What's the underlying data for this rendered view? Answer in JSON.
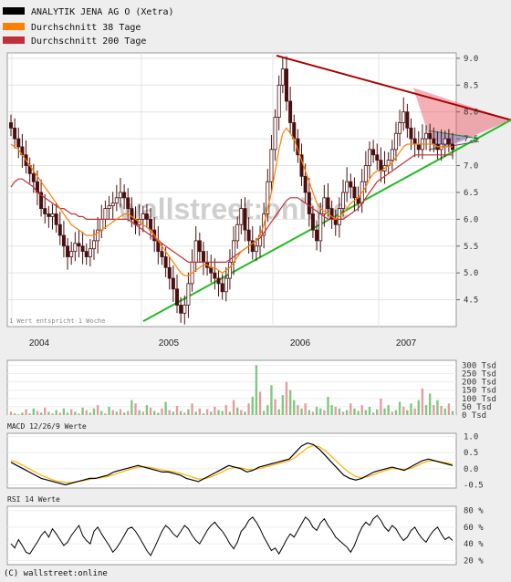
{
  "legend": [
    {
      "label": "ANALYTIK JENA AG O (Xetra)",
      "color": "#000000"
    },
    {
      "label": "Durchschnitt 38 Tage",
      "color": "#ff7f00"
    },
    {
      "label": "Durchschnitt 200 Tage",
      "color": "#c0303a"
    }
  ],
  "note": "1 Wert entspricht 1 Woche",
  "watermark": "wallstreet:online",
  "footer": "(C) wallstreet:online",
  "colors": {
    "candle": "#4a1010",
    "ma38": "#ff7f00",
    "ma200": "#c0303a",
    "support": "#22bb22",
    "resistance": "#aa0000",
    "vol_up": "#7fc97f",
    "vol_down": "#e89aa0",
    "macd": "#000000",
    "signal": "#ffb000",
    "rsi": "#000000"
  },
  "chart_data": [
    {
      "type": "line",
      "name": "price",
      "x_categories": [
        "2004",
        "2005",
        "2006",
        "2007"
      ],
      "y_ticks": [
        "9.0",
        "8.5",
        "8.0",
        "7.5",
        "7.0",
        "6.5",
        "6.0",
        "5.5",
        "5.0",
        "4.5"
      ],
      "ylim": [
        4.0,
        9.1
      ],
      "weekly_close": [
        7.7,
        7.5,
        7.35,
        7.2,
        7.0,
        6.85,
        6.7,
        6.5,
        6.2,
        6.1,
        6.05,
        6.1,
        5.9,
        5.7,
        5.5,
        5.3,
        5.4,
        5.55,
        5.5,
        5.4,
        5.3,
        5.45,
        5.6,
        5.8,
        6.0,
        6.2,
        6.25,
        6.3,
        6.4,
        6.5,
        6.4,
        6.2,
        6.0,
        5.9,
        6.0,
        6.1,
        6.0,
        5.8,
        5.6,
        5.4,
        5.3,
        5.1,
        4.9,
        4.7,
        4.4,
        4.25,
        4.4,
        4.8,
        5.2,
        5.6,
        5.4,
        5.2,
        5.1,
        5.0,
        4.9,
        4.8,
        4.65,
        4.9,
        5.2,
        5.6,
        5.9,
        6.2,
        5.8,
        5.6,
        5.4,
        5.5,
        5.7,
        6.1,
        6.7,
        7.3,
        7.9,
        8.5,
        8.8,
        8.2,
        7.8,
        7.5,
        7.2,
        6.8,
        6.5,
        6.1,
        5.8,
        5.6,
        6.1,
        6.4,
        6.2,
        6.0,
        5.9,
        6.2,
        6.5,
        6.7,
        6.6,
        6.4,
        6.3,
        6.7,
        7.0,
        7.3,
        7.2,
        7.1,
        6.9,
        7.0,
        7.1,
        7.3,
        7.6,
        7.8,
        8.0,
        7.7,
        7.5,
        7.4,
        7.3,
        7.5,
        7.6,
        7.5,
        7.4,
        7.3,
        7.4,
        7.5,
        7.4,
        7.3
      ],
      "ma38": [
        7.4,
        7.35,
        7.3,
        7.2,
        7.1,
        7.0,
        6.9,
        6.8,
        6.7,
        6.6,
        6.5,
        6.4,
        6.3,
        6.2,
        6.1,
        6.0,
        5.9,
        5.85,
        5.8,
        5.75,
        5.7,
        5.7,
        5.7,
        5.75,
        5.8,
        5.85,
        5.9,
        5.95,
        6.0,
        6.05,
        6.1,
        6.1,
        6.05,
        6.0,
        5.95,
        5.9,
        5.85,
        5.8,
        5.7,
        5.6,
        5.5,
        5.4,
        5.3,
        5.2,
        5.1,
        5.0,
        4.95,
        4.95,
        5.0,
        5.05,
        5.1,
        5.15,
        5.15,
        5.1,
        5.1,
        5.05,
        5.0,
        5.05,
        5.1,
        5.2,
        5.3,
        5.4,
        5.45,
        5.5,
        5.55,
        5.6,
        5.7,
        5.9,
        6.2,
        6.5,
        6.9,
        7.3,
        7.6,
        7.7,
        7.6,
        7.5,
        7.3,
        7.1,
        6.9,
        6.7,
        6.5,
        6.3,
        6.2,
        6.15,
        6.1,
        6.05,
        6.0,
        6.05,
        6.1,
        6.2,
        6.3,
        6.35,
        6.4,
        6.5,
        6.6,
        6.75,
        6.85,
        6.9,
        6.9,
        6.95,
        7.0,
        7.05,
        7.15,
        7.25,
        7.35,
        7.4,
        7.4,
        7.4,
        7.4,
        7.4,
        7.4,
        7.4,
        7.4,
        7.35,
        7.35,
        7.35,
        7.35,
        7.35
      ],
      "ma200": [
        6.6,
        6.7,
        6.75,
        6.75,
        6.7,
        6.65,
        6.6,
        6.5,
        6.45,
        6.4,
        6.35,
        6.3,
        6.25,
        6.2,
        6.2,
        6.15,
        6.1,
        6.1,
        6.05,
        6.05,
        6.0,
        6.0,
        6.0,
        6.0,
        6.0,
        6.0,
        6.0,
        6.0,
        6.0,
        6.0,
        6.0,
        6.0,
        5.95,
        5.9,
        5.85,
        5.8,
        5.75,
        5.7,
        5.65,
        5.6,
        5.55,
        5.5,
        5.45,
        5.4,
        5.35,
        5.3,
        5.25,
        5.2,
        5.2,
        5.2,
        5.2,
        5.2,
        5.2,
        5.2,
        5.2,
        5.2,
        5.2,
        5.2,
        5.25,
        5.3,
        5.35,
        5.4,
        5.45,
        5.5,
        5.55,
        5.6,
        5.65,
        5.75,
        5.85,
        5.95,
        6.05,
        6.15,
        6.25,
        6.35,
        6.4,
        6.4,
        6.4,
        6.35,
        6.3,
        6.25,
        6.2,
        6.15,
        6.1,
        6.05,
        6.0,
        6.0,
        6.0,
        6.0,
        6.0,
        6.05,
        6.1,
        6.15,
        6.2,
        6.3,
        6.4,
        6.5,
        6.6,
        6.7,
        6.75,
        6.8,
        6.85,
        6.9,
        6.95,
        7.0,
        7.05,
        7.1,
        7.15,
        7.2,
        7.2,
        7.2,
        7.2,
        7.2,
        7.2,
        7.2,
        7.2,
        7.2,
        7.2,
        7.2
      ],
      "trend_resistance": [
        [
          7.95,
          9.05
        ],
        [
          1.0,
          7.85
        ]
      ],
      "trend_support": [
        [
          0.0,
          4.1
        ],
        [
          1.0,
          7.8
        ]
      ],
      "trend_inner_top": [
        7.65
      ],
      "trend_inner_bottom": [
        7.3
      ]
    },
    {
      "type": "bar",
      "name": "volume",
      "y_ticks": [
        "300 Tsd",
        "250 Tsd",
        "200 Tsd",
        "150 Tsd",
        "100 Tsd",
        "50 Tsd",
        "0 Tsd"
      ],
      "ylim": [
        0,
        330
      ],
      "values": [
        20,
        10,
        5,
        15,
        35,
        10,
        40,
        25,
        15,
        45,
        20,
        10,
        30,
        15,
        40,
        15,
        35,
        20,
        10,
        45,
        30,
        15,
        40,
        60,
        25,
        10,
        50,
        30,
        20,
        35,
        15,
        25,
        90,
        70,
        30,
        20,
        60,
        45,
        25,
        15,
        40,
        80,
        30,
        20,
        55,
        25,
        15,
        35,
        70,
        20,
        40,
        10,
        35,
        20,
        50,
        30,
        25,
        60,
        20,
        90,
        45,
        30,
        20,
        70,
        110,
        300,
        140,
        25,
        60,
        180,
        95,
        35,
        120,
        200,
        150,
        90,
        60,
        40,
        70,
        30,
        20,
        50,
        40,
        30,
        110,
        60,
        50,
        40,
        20,
        30,
        70,
        40,
        25,
        60,
        30,
        50,
        15,
        35,
        100,
        40,
        60,
        20,
        30,
        80,
        50,
        30,
        70,
        40,
        90,
        160,
        60,
        130,
        60,
        90,
        55,
        40,
        70,
        25
      ],
      "up": [
        false,
        true,
        false,
        true,
        false,
        true,
        true,
        false,
        true,
        false,
        true,
        false,
        true,
        false,
        true,
        true,
        false,
        true,
        false,
        true,
        false,
        true,
        true,
        false,
        true,
        false,
        true,
        false,
        true,
        false,
        true,
        false,
        true,
        false,
        true,
        false,
        true,
        false,
        true,
        true,
        false,
        true,
        false,
        true,
        false,
        true,
        false,
        true,
        false,
        true,
        false,
        true,
        false,
        true,
        false,
        true,
        true,
        false,
        true,
        false,
        true,
        false,
        true,
        false,
        true,
        true,
        false,
        true,
        true,
        true,
        false,
        true,
        true,
        false,
        true,
        true,
        false,
        true,
        false,
        true,
        false,
        true,
        true,
        false,
        true,
        true,
        false,
        true,
        false,
        true,
        false,
        true,
        true,
        false,
        true,
        true,
        false,
        true,
        false,
        true,
        true,
        false,
        true,
        true,
        false,
        true,
        true,
        false,
        true,
        false,
        true,
        true,
        false,
        true,
        false,
        true,
        false,
        true
      ]
    },
    {
      "type": "line",
      "name": "macd",
      "title": "MACD 12/26/9 Werte",
      "y_ticks": [
        "1.0",
        "0.5",
        "0.0",
        "-0.5"
      ],
      "ylim": [
        -0.6,
        1.1
      ],
      "macd": [
        0.2,
        0.1,
        0.0,
        -0.1,
        -0.2,
        -0.3,
        -0.35,
        -0.4,
        -0.45,
        -0.5,
        -0.45,
        -0.4,
        -0.35,
        -0.3,
        -0.3,
        -0.25,
        -0.2,
        -0.1,
        -0.05,
        0.0,
        0.05,
        0.1,
        0.05,
        0.0,
        -0.05,
        -0.1,
        -0.1,
        -0.15,
        -0.2,
        -0.3,
        -0.35,
        -0.4,
        -0.3,
        -0.2,
        -0.1,
        0.0,
        0.1,
        0.05,
        0.0,
        -0.1,
        -0.05,
        0.05,
        0.1,
        0.15,
        0.2,
        0.25,
        0.3,
        0.5,
        0.7,
        0.8,
        0.75,
        0.6,
        0.4,
        0.2,
        0.0,
        -0.2,
        -0.3,
        -0.35,
        -0.3,
        -0.2,
        -0.1,
        -0.05,
        0.0,
        0.05,
        0.0,
        -0.05,
        0.05,
        0.15,
        0.25,
        0.3,
        0.25,
        0.2,
        0.15,
        0.1
      ],
      "signal": [
        0.25,
        0.2,
        0.1,
        0.0,
        -0.1,
        -0.2,
        -0.28,
        -0.35,
        -0.4,
        -0.42,
        -0.43,
        -0.4,
        -0.37,
        -0.33,
        -0.3,
        -0.28,
        -0.24,
        -0.18,
        -0.12,
        -0.06,
        0.0,
        0.05,
        0.06,
        0.04,
        0.0,
        -0.04,
        -0.07,
        -0.1,
        -0.14,
        -0.2,
        -0.26,
        -0.32,
        -0.31,
        -0.26,
        -0.18,
        -0.09,
        0.0,
        0.04,
        0.03,
        -0.02,
        -0.03,
        0.0,
        0.05,
        0.1,
        0.15,
        0.2,
        0.25,
        0.35,
        0.5,
        0.65,
        0.72,
        0.68,
        0.55,
        0.38,
        0.2,
        0.02,
        -0.13,
        -0.24,
        -0.28,
        -0.25,
        -0.18,
        -0.11,
        -0.05,
        0.0,
        0.0,
        -0.02,
        0.0,
        0.08,
        0.17,
        0.24,
        0.25,
        0.22,
        0.18,
        0.14
      ]
    },
    {
      "type": "line",
      "name": "rsi",
      "title": "RSI 14 Werte",
      "y_ticks": [
        "80 %",
        "60 %",
        "40 %",
        "20 %"
      ],
      "ylim": [
        15,
        85
      ],
      "values": [
        40,
        35,
        45,
        38,
        30,
        28,
        35,
        42,
        50,
        55,
        48,
        58,
        52,
        45,
        38,
        42,
        50,
        56,
        62,
        50,
        44,
        40,
        55,
        60,
        52,
        45,
        38,
        30,
        35,
        42,
        50,
        58,
        60,
        55,
        48,
        40,
        32,
        26,
        35,
        45,
        55,
        62,
        58,
        52,
        48,
        55,
        62,
        58,
        50,
        44,
        40,
        48,
        56,
        62,
        66,
        60,
        55,
        48,
        40,
        34,
        42,
        55,
        60,
        68,
        72,
        66,
        58,
        48,
        40,
        32,
        35,
        28,
        36,
        45,
        52,
        48,
        56,
        64,
        72,
        68,
        60,
        56,
        65,
        70,
        62,
        56,
        48,
        44,
        40,
        36,
        30,
        38,
        50,
        60,
        66,
        62,
        70,
        74,
        68,
        60,
        55,
        62,
        58,
        50,
        44,
        48,
        56,
        60,
        52,
        46,
        42,
        50,
        56,
        60,
        52,
        45,
        48,
        44
      ]
    }
  ]
}
